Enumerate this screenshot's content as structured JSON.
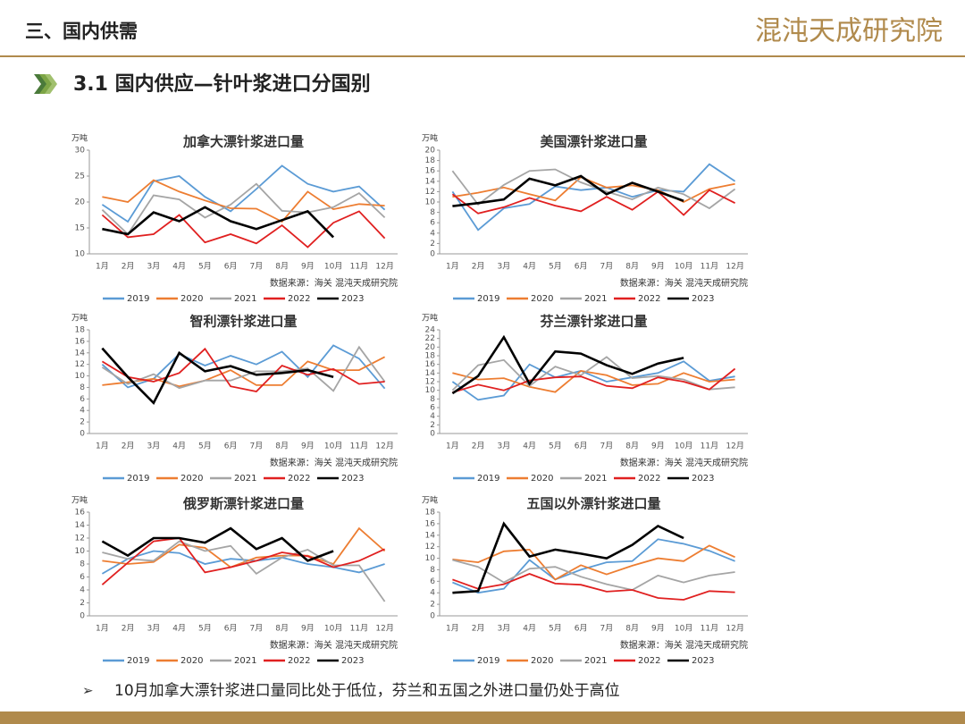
{
  "header": {
    "title": "三、国内供需",
    "logo": "混沌天成研究院",
    "subtitle": "3.1 国内供应—针叶浆进口分国别"
  },
  "footer": {
    "bullet": "10月加拿大漂针浆进口量同比处于低位，芬兰和五国之外进口量仍处于高位"
  },
  "chart_data": [
    {
      "type": "line",
      "title": "加拿大漂针浆进口量",
      "ylabel": "万吨",
      "source": "数据来源：海关 混沌天成研究院",
      "categories": [
        "1月",
        "2月",
        "3月",
        "4月",
        "5月",
        "6月",
        "7月",
        "8月",
        "9月",
        "10月",
        "11月",
        "12月"
      ],
      "ylim": [
        10,
        30
      ],
      "yticks": [
        10,
        15,
        20,
        25,
        30
      ],
      "series": [
        {
          "name": "2019",
          "color": "#5b9bd5",
          "values": [
            19.5,
            16.2,
            24,
            25,
            21,
            18.2,
            22.5,
            27,
            23.5,
            22,
            23,
            18.5
          ]
        },
        {
          "name": "2020",
          "color": "#ed7d31",
          "values": [
            21,
            20,
            24.2,
            22,
            20.3,
            18.8,
            18.7,
            16.2,
            22,
            18.6,
            19.6,
            19.3
          ]
        },
        {
          "name": "2021",
          "color": "#a5a5a5",
          "values": [
            18.5,
            13.8,
            21.3,
            20.5,
            17,
            19.5,
            23.5,
            18.3,
            18,
            19,
            21.7,
            17
          ]
        },
        {
          "name": "2022",
          "color": "#e02020",
          "values": [
            17.5,
            13.2,
            13.8,
            17.5,
            12.2,
            13.8,
            12,
            15.5,
            11.3,
            16,
            18.2,
            13
          ]
        },
        {
          "name": "2023",
          "color": "#000000",
          "values": [
            14.8,
            13.8,
            18,
            16.3,
            19,
            16.3,
            14.8,
            16.5,
            18.2,
            13.2,
            null,
            null
          ]
        }
      ]
    },
    {
      "type": "line",
      "title": "美国漂针浆进口量",
      "ylabel": "万吨",
      "source": "数据来源：海关 混沌天成研究院",
      "categories": [
        "1月",
        "2月",
        "3月",
        "4月",
        "5月",
        "6月",
        "7月",
        "8月",
        "9月",
        "10月",
        "11月",
        "12月"
      ],
      "ylim": [
        0,
        20
      ],
      "yticks": [
        0,
        2,
        4,
        6,
        8,
        10,
        12,
        14,
        16,
        18,
        20
      ],
      "series": [
        {
          "name": "2019",
          "color": "#5b9bd5",
          "values": [
            12,
            4.6,
            8.8,
            9.6,
            13,
            12.3,
            12.8,
            11,
            12.3,
            12,
            17.3,
            14
          ]
        },
        {
          "name": "2020",
          "color": "#ed7d31",
          "values": [
            11,
            11.8,
            12.8,
            11.5,
            10.3,
            14.8,
            12.8,
            13.2,
            12.3,
            10,
            12.5,
            13.5
          ]
        },
        {
          "name": "2021",
          "color": "#a5a5a5",
          "values": [
            16,
            9.5,
            13.3,
            16,
            16.3,
            13.8,
            12,
            10.5,
            12.8,
            11.5,
            8.8,
            12.5
          ]
        },
        {
          "name": "2022",
          "color": "#e02020",
          "values": [
            11.5,
            7.8,
            9,
            10.8,
            9.3,
            8.2,
            11,
            8.5,
            12,
            7.5,
            12.3,
            9.8
          ]
        },
        {
          "name": "2023",
          "color": "#000000",
          "values": [
            9.2,
            9.8,
            10.5,
            14.5,
            13.2,
            15,
            11.5,
            13.7,
            12,
            10.2,
            null,
            null
          ]
        }
      ]
    },
    {
      "type": "line",
      "title": "智利漂针浆进口量",
      "ylabel": "万吨",
      "source": "数据来源：海关 混沌天成研究院",
      "categories": [
        "1月",
        "2月",
        "3月",
        "4月",
        "5月",
        "6月",
        "7月",
        "8月",
        "9月",
        "10月",
        "11月",
        "12月"
      ],
      "ylim": [
        0,
        18
      ],
      "yticks": [
        0,
        2,
        4,
        6,
        8,
        10,
        12,
        14,
        16,
        18
      ],
      "series": [
        {
          "name": "2019",
          "color": "#5b9bd5",
          "values": [
            12,
            8,
            9.5,
            13.8,
            11.8,
            13.5,
            12,
            14.2,
            9.8,
            15.3,
            13,
            7.8
          ]
        },
        {
          "name": "2020",
          "color": "#ed7d31",
          "values": [
            8.4,
            8.9,
            9.5,
            8.2,
            9.2,
            11,
            8.4,
            8.4,
            12.5,
            11,
            11,
            13.3
          ]
        },
        {
          "name": "2021",
          "color": "#a5a5a5",
          "values": [
            11.5,
            8.6,
            10.3,
            7.9,
            9.2,
            9.2,
            10.8,
            10.8,
            11.3,
            7.4,
            15,
            9
          ]
        },
        {
          "name": "2022",
          "color": "#e02020",
          "values": [
            12.5,
            9.8,
            9,
            10.5,
            14.7,
            8.2,
            7.3,
            11.8,
            10.2,
            11.2,
            8.6,
            9
          ]
        },
        {
          "name": "2023",
          "color": "#000000",
          "values": [
            14.8,
            9.8,
            5.3,
            14,
            10.8,
            11.7,
            10.2,
            10.5,
            11,
            9.8,
            null,
            null
          ]
        }
      ]
    },
    {
      "type": "line",
      "title": "芬兰漂针浆进口量",
      "ylabel": "万吨",
      "source": "数据来源：海关 混沌天成研究院",
      "categories": [
        "1月",
        "2月",
        "3月",
        "4月",
        "5月",
        "6月",
        "7月",
        "8月",
        "9月",
        "10月",
        "11月",
        "12月"
      ],
      "ylim": [
        0,
        24
      ],
      "yticks": [
        0,
        2,
        4,
        6,
        8,
        10,
        12,
        14,
        16,
        18,
        20,
        22,
        24
      ],
      "series": [
        {
          "name": "2019",
          "color": "#5b9bd5",
          "values": [
            12,
            7.8,
            8.8,
            16,
            13,
            14.5,
            12,
            13,
            14,
            16.7,
            12.2,
            13.2
          ]
        },
        {
          "name": "2020",
          "color": "#ed7d31",
          "values": [
            14,
            12.5,
            12.8,
            10.8,
            9.6,
            14.5,
            13.5,
            11.2,
            11.5,
            14,
            12,
            12.5
          ]
        },
        {
          "name": "2021",
          "color": "#a5a5a5",
          "values": [
            10,
            15.8,
            17,
            11,
            15.5,
            13.5,
            17.7,
            12.8,
            13.3,
            12.5,
            10.2,
            10.7
          ]
        },
        {
          "name": "2022",
          "color": "#e02020",
          "values": [
            9.5,
            11.3,
            10,
            12.3,
            13,
            13.2,
            11,
            10.5,
            13,
            12,
            10.2,
            15
          ]
        },
        {
          "name": "2023",
          "color": "#000000",
          "values": [
            9.3,
            13.3,
            22.3,
            11.5,
            19,
            18.5,
            15.8,
            13.8,
            16.2,
            17.5,
            null,
            null
          ]
        }
      ]
    },
    {
      "type": "line",
      "title": "俄罗斯漂针浆进口量",
      "ylabel": "万吨",
      "source": "数据来源：海关 混沌天成研究院",
      "categories": [
        "1月",
        "2月",
        "3月",
        "4月",
        "5月",
        "6月",
        "7月",
        "8月",
        "9月",
        "10月",
        "11月",
        "12月"
      ],
      "ylim": [
        0,
        16
      ],
      "yticks": [
        0,
        2,
        4,
        6,
        8,
        10,
        12,
        14,
        16
      ],
      "series": [
        {
          "name": "2019",
          "color": "#5b9bd5",
          "values": [
            6.5,
            8.8,
            10,
            9.7,
            8,
            8.8,
            8.5,
            9,
            8,
            7.5,
            6.7,
            8
          ]
        },
        {
          "name": "2020",
          "color": "#ed7d31",
          "values": [
            8.5,
            8,
            8.3,
            11,
            10.5,
            7.5,
            9,
            9.3,
            9.3,
            8,
            13.5,
            10
          ]
        },
        {
          "name": "2021",
          "color": "#a5a5a5",
          "values": [
            9.8,
            8.8,
            8.5,
            11.5,
            10,
            10.8,
            6.5,
            9,
            10.2,
            7.8,
            7.8,
            2.2
          ]
        },
        {
          "name": "2022",
          "color": "#e02020",
          "values": [
            4.8,
            8.2,
            11.5,
            12,
            6.7,
            7.5,
            8.5,
            9.8,
            9.2,
            7.5,
            8.5,
            10.3
          ]
        },
        {
          "name": "2023",
          "color": "#000000",
          "values": [
            11.5,
            9.3,
            12,
            12,
            11.3,
            13.5,
            10.3,
            12,
            8.5,
            10,
            null,
            null
          ]
        }
      ]
    },
    {
      "type": "line",
      "title": "五国以外漂针浆进口量",
      "ylabel": "万吨",
      "source": "数据来源：海关 混沌天成研究院",
      "categories": [
        "1月",
        "2月",
        "3月",
        "4月",
        "5月",
        "6月",
        "7月",
        "8月",
        "9月",
        "10月",
        "11月",
        "12月"
      ],
      "ylim": [
        0,
        18
      ],
      "yticks": [
        0,
        2,
        4,
        6,
        8,
        10,
        12,
        14,
        16,
        18
      ],
      "series": [
        {
          "name": "2019",
          "color": "#5b9bd5",
          "values": [
            5.8,
            4,
            4.7,
            9.7,
            6.3,
            8,
            9.3,
            9.5,
            13.3,
            12.5,
            11.3,
            9.5
          ]
        },
        {
          "name": "2020",
          "color": "#ed7d31",
          "values": [
            9.8,
            9.3,
            11.2,
            11.5,
            6.3,
            8.8,
            7.2,
            8.7,
            10,
            9.5,
            12.2,
            10.2
          ]
        },
        {
          "name": "2021",
          "color": "#a5a5a5",
          "values": [
            9.7,
            8.5,
            5.8,
            8.2,
            8.5,
            6.8,
            5.5,
            4.5,
            7,
            5.8,
            7,
            7.6
          ]
        },
        {
          "name": "2022",
          "color": "#e02020",
          "values": [
            6.3,
            4.7,
            5.5,
            7.3,
            5.6,
            5.4,
            4.2,
            4.5,
            3.1,
            2.8,
            4.3,
            4.1
          ]
        },
        {
          "name": "2023",
          "color": "#000000",
          "values": [
            4,
            4.3,
            16,
            10.3,
            11.5,
            10.8,
            10,
            12.3,
            15.6,
            13.5,
            null,
            null
          ]
        }
      ]
    }
  ]
}
